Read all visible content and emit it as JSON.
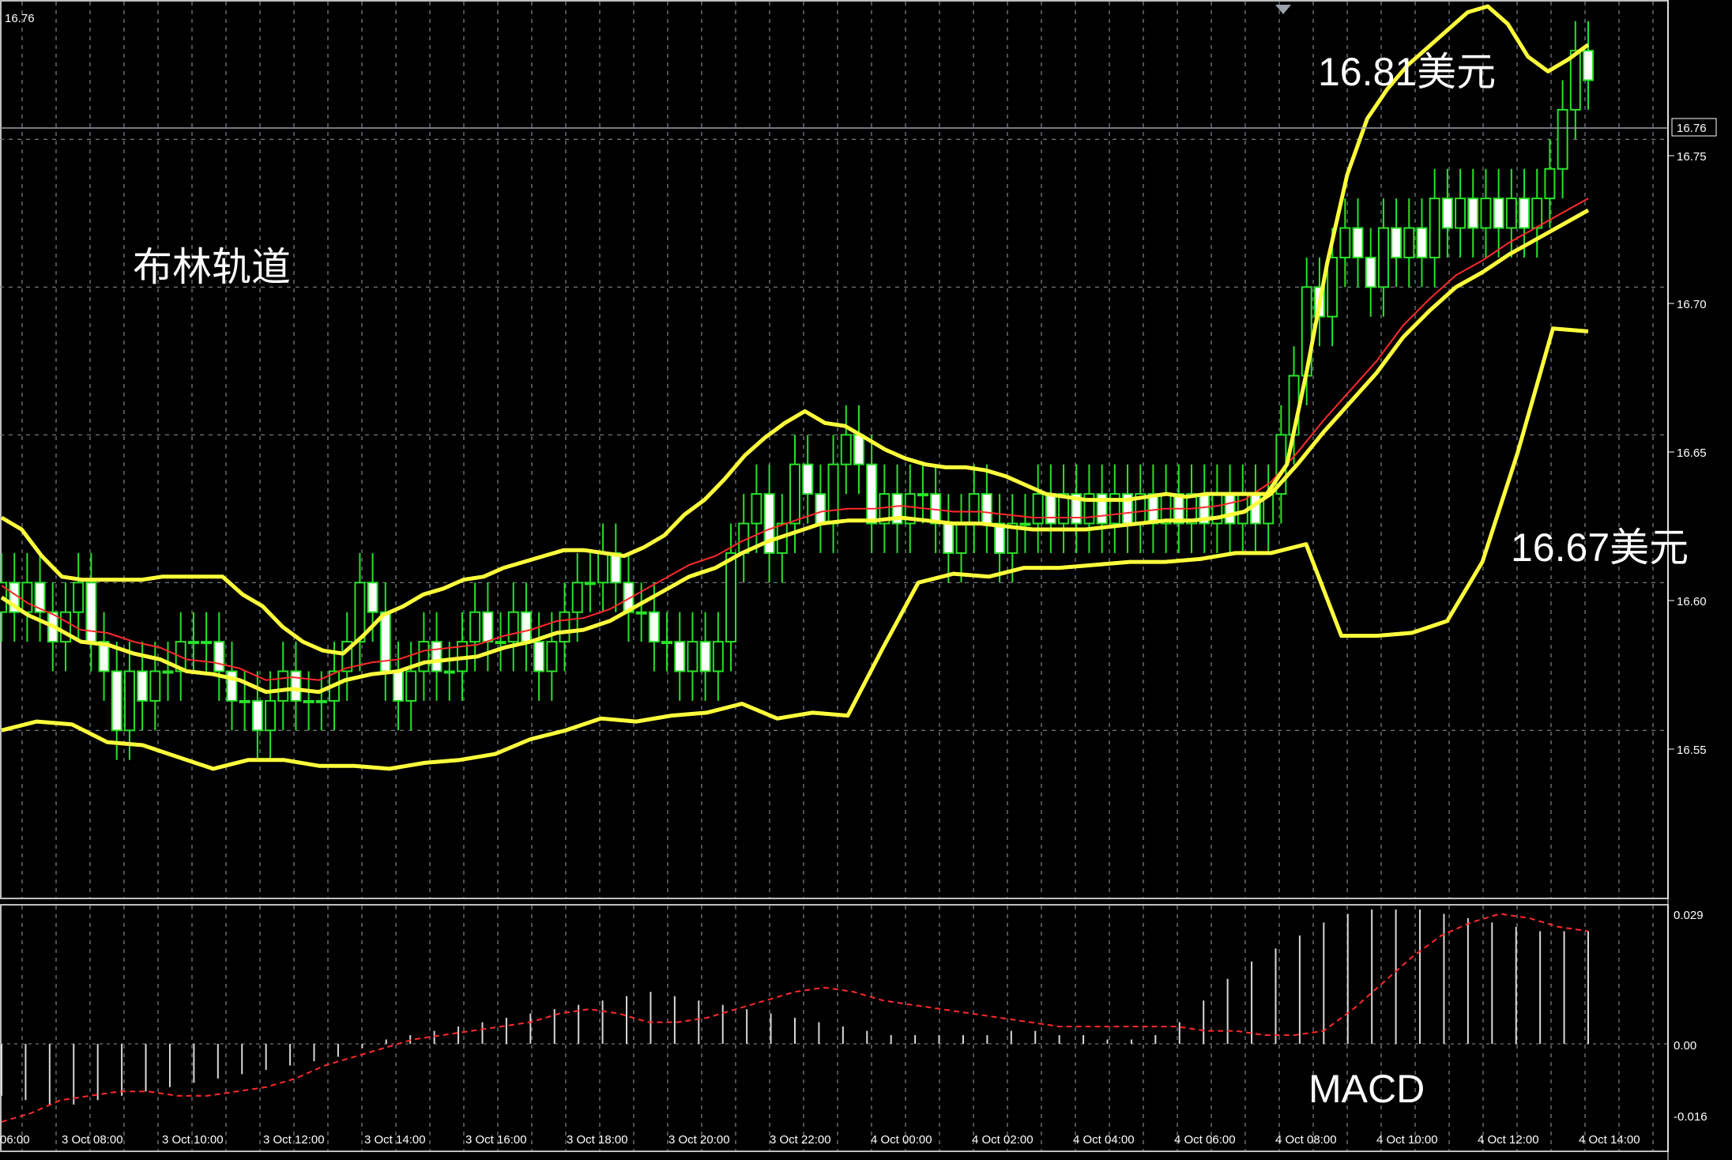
{
  "chart_data": [
    {
      "type": "candlestick",
      "title": "",
      "corner_price": "16.76",
      "current_price_label": "16.76",
      "ylim": [
        16.495,
        16.795
      ],
      "y_ticks": [
        "16.75",
        "16.70",
        "16.65",
        "16.60",
        "16.55"
      ],
      "x_ticks": [
        "06:00",
        "3 Oct 08:00",
        "3 Oct 10:00",
        "3 Oct 12:00",
        "3 Oct 14:00",
        "3 Oct 16:00",
        "3 Oct 18:00",
        "3 Oct 20:00",
        "3 Oct 22:00",
        "4 Oct 00:00",
        "4 Oct 02:00",
        "4 Oct 04:00",
        "4 Oct 06:00",
        "4 Oct 08:00",
        "4 Oct 10:00",
        "4 Oct 12:00",
        "4 Oct 14:00"
      ],
      "grid": true,
      "annotations": {
        "indicator_name": "布林轨道",
        "upper_price": "16.81美元",
        "lower_price": "16.67美元"
      },
      "candles_close": [
        16.6,
        16.59,
        16.6,
        16.59,
        16.58,
        16.59,
        16.6,
        16.58,
        16.57,
        16.55,
        16.57,
        16.56,
        16.57,
        16.57,
        16.58,
        16.58,
        16.58,
        16.57,
        16.56,
        16.56,
        16.55,
        16.56,
        16.57,
        16.56,
        16.56,
        16.56,
        16.57,
        16.58,
        16.6,
        16.59,
        16.57,
        16.56,
        16.57,
        16.58,
        16.57,
        16.57,
        16.58,
        16.59,
        16.58,
        16.58,
        16.59,
        16.58,
        16.57,
        16.58,
        16.59,
        16.6,
        16.6,
        16.61,
        16.6,
        16.59,
        16.59,
        16.58,
        16.58,
        16.57,
        16.58,
        16.57,
        16.58,
        16.61,
        16.62,
        16.63,
        16.61,
        16.62,
        16.64,
        16.63,
        16.62,
        16.64,
        16.65,
        16.64,
        16.62,
        16.63,
        16.62,
        16.63,
        16.63,
        16.62,
        16.61,
        16.62,
        16.63,
        16.62,
        16.61,
        16.62,
        16.62,
        16.63,
        16.62,
        16.63,
        16.62,
        16.63,
        16.62,
        16.63,
        16.62,
        16.63,
        16.62,
        16.63,
        16.62,
        16.63,
        16.62,
        16.63,
        16.62,
        16.63,
        16.62,
        16.63,
        16.65,
        16.67,
        16.7,
        16.69,
        16.71,
        16.72,
        16.71,
        16.7,
        16.72,
        16.71,
        16.72,
        16.71,
        16.73,
        16.72,
        16.73,
        16.72,
        16.73,
        16.72,
        16.73,
        16.72,
        16.73,
        16.74,
        16.76,
        16.78,
        16.77
      ],
      "upper_band": [
        16.622,
        16.618,
        16.609,
        16.602,
        16.601,
        16.601,
        16.601,
        16.601,
        16.602,
        16.602,
        16.602,
        16.602,
        16.596,
        16.592,
        16.585,
        16.58,
        16.577,
        16.576,
        16.582,
        16.589,
        16.592,
        16.596,
        16.598,
        16.601,
        16.602,
        16.605,
        16.607,
        16.609,
        16.611,
        16.611,
        16.61,
        16.609,
        16.612,
        16.616,
        16.623,
        16.628,
        16.635,
        16.643,
        16.649,
        16.654,
        16.658,
        16.654,
        16.653,
        16.649,
        16.645,
        16.642,
        16.64,
        16.639,
        16.639,
        16.638,
        16.636,
        16.633,
        16.63,
        16.629,
        16.628,
        16.628,
        16.628,
        16.629,
        16.63,
        16.629,
        16.63,
        16.63,
        16.63,
        16.63,
        16.64,
        16.672,
        16.708,
        16.738,
        16.757,
        16.767,
        16.775,
        16.781,
        16.787,
        16.793,
        16.795,
        16.789,
        16.778,
        16.773,
        16.777,
        16.782
      ],
      "middle_band": [
        16.595,
        16.589,
        16.585,
        16.58,
        16.579,
        16.576,
        16.574,
        16.57,
        16.569,
        16.567,
        16.563,
        16.564,
        16.563,
        16.567,
        16.569,
        16.57,
        16.573,
        16.574,
        16.575,
        16.578,
        16.58,
        16.583,
        16.584,
        16.587,
        16.592,
        16.597,
        16.602,
        16.605,
        16.61,
        16.614,
        16.617,
        16.62,
        16.621,
        16.621,
        16.622,
        16.621,
        16.62,
        16.62,
        16.619,
        16.618,
        16.618,
        16.618,
        16.619,
        16.62,
        16.621,
        16.621,
        16.622,
        16.624,
        16.63,
        16.64,
        16.651,
        16.661,
        16.671,
        16.683,
        16.692,
        16.7,
        16.705,
        16.711,
        16.716,
        16.721,
        16.726
      ],
      "lower_band": [
        16.55,
        16.553,
        16.552,
        16.546,
        16.545,
        16.541,
        16.537,
        16.54,
        16.54,
        16.538,
        16.538,
        16.537,
        16.539,
        16.54,
        16.542,
        16.547,
        16.55,
        16.554,
        16.553,
        16.555,
        16.556,
        16.559,
        16.554,
        16.556,
        16.555,
        16.578,
        16.6,
        16.603,
        16.602,
        16.605,
        16.605,
        16.606,
        16.607,
        16.607,
        16.608,
        16.61,
        16.61,
        16.613,
        16.582,
        16.582,
        16.583,
        16.587,
        16.607,
        16.644,
        16.686,
        16.685
      ]
    },
    {
      "type": "bar",
      "title": "MACD",
      "y_ticks": [
        "0.029",
        "0.00",
        "-0.016"
      ],
      "ylim": [
        -0.016,
        0.029
      ],
      "histogram": [
        -0.012,
        -0.013,
        -0.014,
        -0.014,
        -0.013,
        -0.012,
        -0.011,
        -0.01,
        -0.009,
        -0.008,
        -0.007,
        -0.006,
        -0.005,
        -0.004,
        -0.003,
        -0.001,
        0.001,
        0.002,
        0.003,
        0.004,
        0.005,
        0.006,
        0.007,
        0.008,
        0.009,
        0.01,
        0.011,
        0.012,
        0.011,
        0.01,
        0.009,
        0.008,
        0.007,
        0.006,
        0.005,
        0.004,
        0.003,
        0.002,
        0.002,
        0.002,
        0.002,
        0.002,
        0.003,
        0.003,
        0.002,
        0.002,
        0.001,
        0.001,
        0.002,
        0.005,
        0.01,
        0.015,
        0.019,
        0.022,
        0.025,
        0.028,
        0.03,
        0.031,
        0.031,
        0.031,
        0.03,
        0.029,
        0.028,
        0.027,
        0.026,
        0.026,
        0.026
      ],
      "signal": [
        -0.018,
        -0.016,
        -0.013,
        -0.012,
        -0.011,
        -0.011,
        -0.012,
        -0.012,
        -0.011,
        -0.01,
        -0.008,
        -0.005,
        -0.003,
        -0.001,
        0.001,
        0.002,
        0.003,
        0.004,
        0.005,
        0.007,
        0.008,
        0.007,
        0.005,
        0.005,
        0.006,
        0.008,
        0.01,
        0.012,
        0.013,
        0.012,
        0.01,
        0.009,
        0.008,
        0.007,
        0.006,
        0.005,
        0.004,
        0.004,
        0.004,
        0.004,
        0.004,
        0.003,
        0.003,
        0.002,
        0.002,
        0.003,
        0.008,
        0.014,
        0.02,
        0.025,
        0.028,
        0.03,
        0.029,
        0.027,
        0.026
      ]
    }
  ]
}
